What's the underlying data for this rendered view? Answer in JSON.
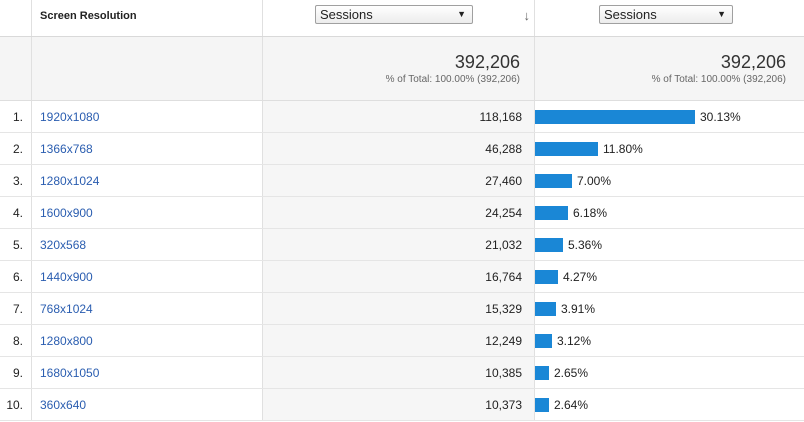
{
  "header": {
    "dimension_label": "Screen Resolution",
    "metric_select_1": "Sessions",
    "metric_select_2": "Sessions"
  },
  "totals": {
    "col1_value": "392,206",
    "col1_sub": "% of Total: 100.00% (392,206)",
    "col2_value": "392,206",
    "col2_sub": "% of Total: 100.00% (392,206)"
  },
  "rows": [
    {
      "num": "1.",
      "resolution": "1920x1080",
      "sessions": "118,168",
      "pct": "30.13%",
      "share": 30.13
    },
    {
      "num": "2.",
      "resolution": "1366x768",
      "sessions": "46,288",
      "pct": "11.80%",
      "share": 11.8
    },
    {
      "num": "3.",
      "resolution": "1280x1024",
      "sessions": "27,460",
      "pct": "7.00%",
      "share": 7.0
    },
    {
      "num": "4.",
      "resolution": "1600x900",
      "sessions": "24,254",
      "pct": "6.18%",
      "share": 6.18
    },
    {
      "num": "5.",
      "resolution": "320x568",
      "sessions": "21,032",
      "pct": "5.36%",
      "share": 5.36
    },
    {
      "num": "6.",
      "resolution": "1440x900",
      "sessions": "16,764",
      "pct": "4.27%",
      "share": 4.27
    },
    {
      "num": "7.",
      "resolution": "768x1024",
      "sessions": "15,329",
      "pct": "3.91%",
      "share": 3.91
    },
    {
      "num": "8.",
      "resolution": "1280x800",
      "sessions": "12,249",
      "pct": "3.12%",
      "share": 3.12
    },
    {
      "num": "9.",
      "resolution": "1680x1050",
      "sessions": "10,385",
      "pct": "2.65%",
      "share": 2.65
    },
    {
      "num": "10.",
      "resolution": "360x640",
      "sessions": "10,373",
      "pct": "2.64%",
      "share": 2.64
    }
  ],
  "icons": {
    "sort": "sort-down-arrow-icon",
    "dropdown": "dropdown-caret-icon"
  },
  "colors": {
    "bar": "#1a87d6",
    "link": "#2a5db0"
  }
}
